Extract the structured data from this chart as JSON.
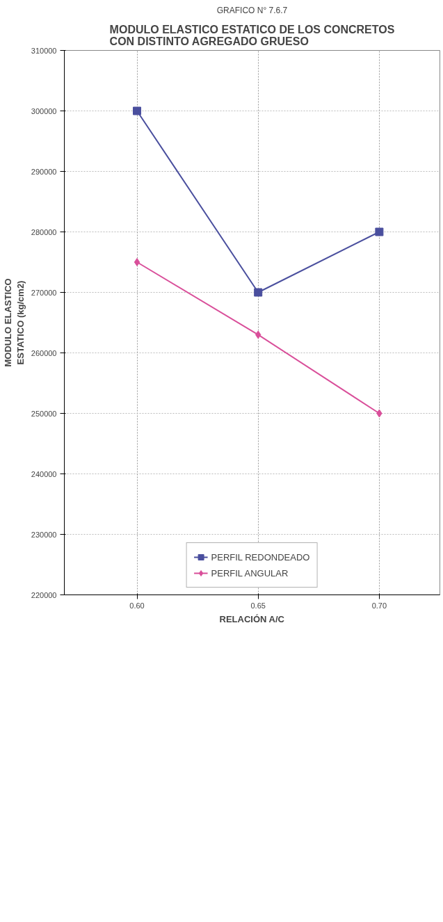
{
  "chart_data": {
    "type": "line",
    "subtitle": "GRAFICO N° 7.6.7",
    "title": "MODULO ELASTICO ESTATICO DE LOS CONCRETOS\nCON DISTINTO AGREGADO GRUESO",
    "xlabel": "RELACIÓN A/C",
    "ylabel": "MODULO ELASTICO\nESTATICO (kg/cm2)",
    "x": [
      0.6,
      0.65,
      0.7
    ],
    "series": [
      {
        "name": "PERFIL REDONDEADO",
        "color": "#4a4f9e",
        "marker": "square",
        "values": [
          300000,
          270000,
          280000
        ]
      },
      {
        "name": "PERFIL ANGULAR",
        "color": "#d94f9a",
        "marker": "diamond",
        "values": [
          275000,
          263000,
          250000
        ]
      }
    ],
    "xlim": [
      0.57,
      0.725
    ],
    "xticks": [
      {
        "value": 0.6,
        "label": "0.60"
      },
      {
        "value": 0.65,
        "label": "0.65"
      },
      {
        "value": 0.7,
        "label": "0.70"
      }
    ],
    "ylim": [
      220000,
      310000
    ],
    "yticks": [
      220000,
      230000,
      240000,
      250000,
      260000,
      270000,
      280000,
      290000,
      300000,
      310000
    ],
    "grid": true,
    "legend": "bottom",
    "line_style": "solid"
  }
}
